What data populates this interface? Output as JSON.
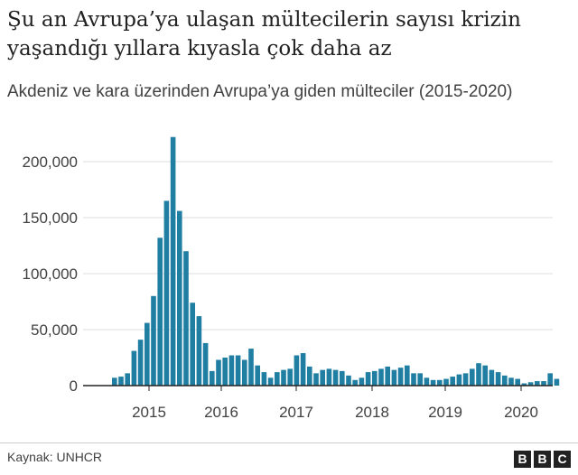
{
  "header": {
    "title": "Şu an Avrupa’ya ulaşan mültecilerin sayısı krizin yaşandığı yıllara kıyasla çok daha az",
    "subtitle": "Akdeniz ve kara üzerinden Avrupa’ya giden mülteciler (2015-2020)"
  },
  "footer": {
    "source": "Kaynak: UNHCR",
    "logo_letters": [
      "B",
      "B",
      "C"
    ]
  },
  "colors": {
    "bar": "#1f7ea1",
    "grid": "#dddddd",
    "baseline": "#222222"
  },
  "chart_data": {
    "type": "bar",
    "title": "",
    "xlabel": "",
    "ylabel": "",
    "ylim": [
      0,
      225000
    ],
    "y_ticks": [
      0,
      50000,
      100000,
      150000,
      200000
    ],
    "y_tick_labels": [
      "0",
      "50,000",
      "100,000",
      "150,000",
      "200,000"
    ],
    "x_tick_labels": [
      "2015",
      "2016",
      "2017",
      "2018",
      "2019",
      "2020"
    ],
    "grid": true,
    "values": [
      7000,
      8000,
      11000,
      31000,
      41000,
      56000,
      80000,
      132000,
      165000,
      222000,
      156000,
      120000,
      74000,
      62000,
      38000,
      13000,
      23000,
      25000,
      27000,
      27000,
      23000,
      33000,
      18000,
      12000,
      7000,
      12000,
      14000,
      15000,
      27000,
      29000,
      17000,
      11000,
      14000,
      15000,
      14000,
      13000,
      9000,
      5000,
      7000,
      12000,
      13000,
      15000,
      17000,
      14000,
      16000,
      18000,
      11000,
      11000,
      7000,
      5000,
      5000,
      6000,
      8000,
      10000,
      11000,
      15000,
      20000,
      18000,
      14000,
      12000,
      9000,
      7000,
      6000,
      2000,
      3000,
      4000,
      4000,
      11000,
      6000
    ]
  }
}
